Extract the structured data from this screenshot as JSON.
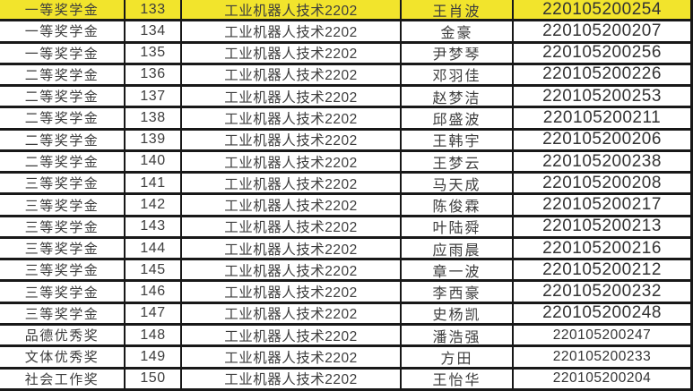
{
  "table": {
    "description": "scholarship-award-roster",
    "highlight_color": "#f2e42c",
    "border_color": "#181818",
    "text_color": "#3d3d3d",
    "columns": [
      "award",
      "serial",
      "class",
      "name",
      "student_id"
    ],
    "rows": [
      {
        "award": "一等奖学金",
        "serial": "133",
        "class": "工业机器人技术2202",
        "name": "王肖波",
        "student_id": "220105200254",
        "highlighted": true,
        "id_small": false
      },
      {
        "award": "一等奖学金",
        "serial": "134",
        "class": "工业机器人技术2202",
        "name": "金豪",
        "student_id": "220105200207",
        "highlighted": false,
        "id_small": false
      },
      {
        "award": "一等奖学金",
        "serial": "135",
        "class": "工业机器人技术2202",
        "name": "尹梦琴",
        "student_id": "220105200256",
        "highlighted": false,
        "id_small": false
      },
      {
        "award": "二等奖学金",
        "serial": "136",
        "class": "工业机器人技术2202",
        "name": "邓羽佳",
        "student_id": "220105200226",
        "highlighted": false,
        "id_small": false
      },
      {
        "award": "二等奖学金",
        "serial": "137",
        "class": "工业机器人技术2202",
        "name": "赵梦洁",
        "student_id": "220105200253",
        "highlighted": false,
        "id_small": false
      },
      {
        "award": "二等奖学金",
        "serial": "138",
        "class": "工业机器人技术2202",
        "name": "邱盛波",
        "student_id": "220105200211",
        "highlighted": false,
        "id_small": false
      },
      {
        "award": "二等奖学金",
        "serial": "139",
        "class": "工业机器人技术2202",
        "name": "王韩宇",
        "student_id": "220105200206",
        "highlighted": false,
        "id_small": false
      },
      {
        "award": "二等奖学金",
        "serial": "140",
        "class": "工业机器人技术2202",
        "name": "王梦云",
        "student_id": "220105200238",
        "highlighted": false,
        "id_small": false
      },
      {
        "award": "三等奖学金",
        "serial": "141",
        "class": "工业机器人技术2202",
        "name": "马天成",
        "student_id": "220105200208",
        "highlighted": false,
        "id_small": false
      },
      {
        "award": "三等奖学金",
        "serial": "142",
        "class": "工业机器人技术2202",
        "name": "陈俊霖",
        "student_id": "220105200217",
        "highlighted": false,
        "id_small": false
      },
      {
        "award": "三等奖学金",
        "serial": "143",
        "class": "工业机器人技术2202",
        "name": "叶陆舜",
        "student_id": "220105200213",
        "highlighted": false,
        "id_small": false
      },
      {
        "award": "三等奖学金",
        "serial": "144",
        "class": "工业机器人技术2202",
        "name": "应雨晨",
        "student_id": "220105200216",
        "highlighted": false,
        "id_small": false
      },
      {
        "award": "三等奖学金",
        "serial": "145",
        "class": "工业机器人技术2202",
        "name": "章一波",
        "student_id": "220105200212",
        "highlighted": false,
        "id_small": false
      },
      {
        "award": "三等奖学金",
        "serial": "146",
        "class": "工业机器人技术2202",
        "name": "李西豪",
        "student_id": "220105200232",
        "highlighted": false,
        "id_small": false
      },
      {
        "award": "三等奖学金",
        "serial": "147",
        "class": "工业机器人技术2202",
        "name": "史杨凯",
        "student_id": "220105200248",
        "highlighted": false,
        "id_small": false
      },
      {
        "award": "品德优秀奖",
        "serial": "148",
        "class": "工业机器人技术2202",
        "name": "潘浩强",
        "student_id": "220105200247",
        "highlighted": false,
        "id_small": true
      },
      {
        "award": "文体优秀奖",
        "serial": "149",
        "class": "工业机器人技术2202",
        "name": "方田",
        "student_id": "220105200233",
        "highlighted": false,
        "id_small": true
      },
      {
        "award": "社会工作奖",
        "serial": "150",
        "class": "工业机器人技术2202",
        "name": "王怡华",
        "student_id": "220105200204",
        "highlighted": false,
        "id_small": true
      }
    ]
  }
}
